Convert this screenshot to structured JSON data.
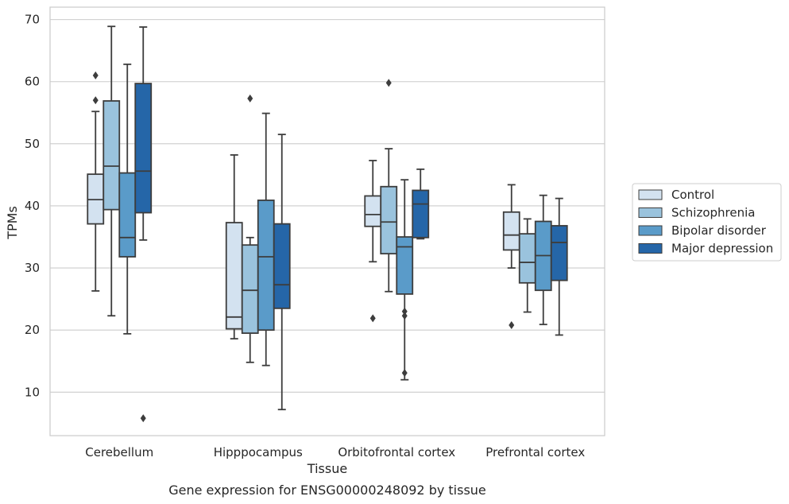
{
  "chart_data": {
    "type": "boxplot",
    "caption": "Gene expression for ENSG00000248092 by tissue",
    "xlabel": "Tissue",
    "ylabel": "TPMs",
    "ylim": [
      3,
      72
    ],
    "yticks": [
      10,
      20,
      30,
      40,
      50,
      60,
      70
    ],
    "grid": true,
    "legend_position": "right",
    "categories": [
      "Cerebellum",
      "Hipppocampus",
      "Orbitofrontal cortex",
      "Prefrontal cortex"
    ],
    "series": [
      {
        "name": "Control",
        "color": "#d3e2f0",
        "boxes": [
          {
            "whislo": 26.3,
            "q1": 37.1,
            "med": 41.0,
            "q3": 45.1,
            "whishi": 55.2,
            "fliers": [
              57.0,
              61.0
            ]
          },
          {
            "whislo": 18.6,
            "q1": 20.2,
            "med": 22.1,
            "q3": 37.3,
            "whishi": 48.2,
            "fliers": []
          },
          {
            "whislo": 31.0,
            "q1": 36.7,
            "med": 38.6,
            "q3": 41.6,
            "whishi": 47.3,
            "fliers": [
              21.9
            ]
          },
          {
            "whislo": 30.0,
            "q1": 32.9,
            "med": 35.3,
            "q3": 39.0,
            "whishi": 43.4,
            "fliers": [
              20.8
            ]
          }
        ]
      },
      {
        "name": "Schizophrenia",
        "color": "#9ac3dd",
        "boxes": [
          {
            "whislo": 22.3,
            "q1": 39.4,
            "med": 46.4,
            "q3": 56.9,
            "whishi": 68.9,
            "fliers": []
          },
          {
            "whislo": 14.8,
            "q1": 19.5,
            "med": 26.4,
            "q3": 33.7,
            "whishi": 34.9,
            "fliers": [
              57.3
            ]
          },
          {
            "whislo": 26.2,
            "q1": 32.3,
            "med": 37.4,
            "q3": 43.1,
            "whishi": 49.2,
            "fliers": [
              59.8
            ]
          },
          {
            "whislo": 22.9,
            "q1": 27.6,
            "med": 30.9,
            "q3": 35.5,
            "whishi": 37.9,
            "fliers": []
          }
        ]
      },
      {
        "name": "Bipolar disorder",
        "color": "#5a9bc9",
        "boxes": [
          {
            "whislo": 19.4,
            "q1": 31.8,
            "med": 34.9,
            "q3": 45.3,
            "whishi": 62.8,
            "fliers": []
          },
          {
            "whislo": 14.3,
            "q1": 20.0,
            "med": 31.8,
            "q3": 40.9,
            "whishi": 54.9,
            "fliers": []
          },
          {
            "whislo": 12.0,
            "q1": 25.8,
            "med": 33.4,
            "q3": 35.0,
            "whishi": 44.2,
            "fliers": [
              13.1,
              22.3,
              23.0
            ]
          },
          {
            "whislo": 20.9,
            "q1": 26.4,
            "med": 32.0,
            "q3": 37.5,
            "whishi": 41.7,
            "fliers": []
          }
        ]
      },
      {
        "name": "Major depression",
        "color": "#2566a8",
        "boxes": [
          {
            "whislo": 34.5,
            "q1": 38.9,
            "med": 45.6,
            "q3": 59.7,
            "whishi": 68.8,
            "fliers": [
              5.8
            ]
          },
          {
            "whislo": 7.2,
            "q1": 23.5,
            "med": 27.3,
            "q3": 37.1,
            "whishi": 51.5,
            "fliers": []
          },
          {
            "whislo": 34.7,
            "q1": 34.9,
            "med": 40.3,
            "q3": 42.5,
            "whishi": 45.9,
            "fliers": []
          },
          {
            "whislo": 19.2,
            "q1": 28.0,
            "med": 34.1,
            "q3": 36.8,
            "whishi": 41.2,
            "fliers": []
          }
        ]
      }
    ]
  }
}
